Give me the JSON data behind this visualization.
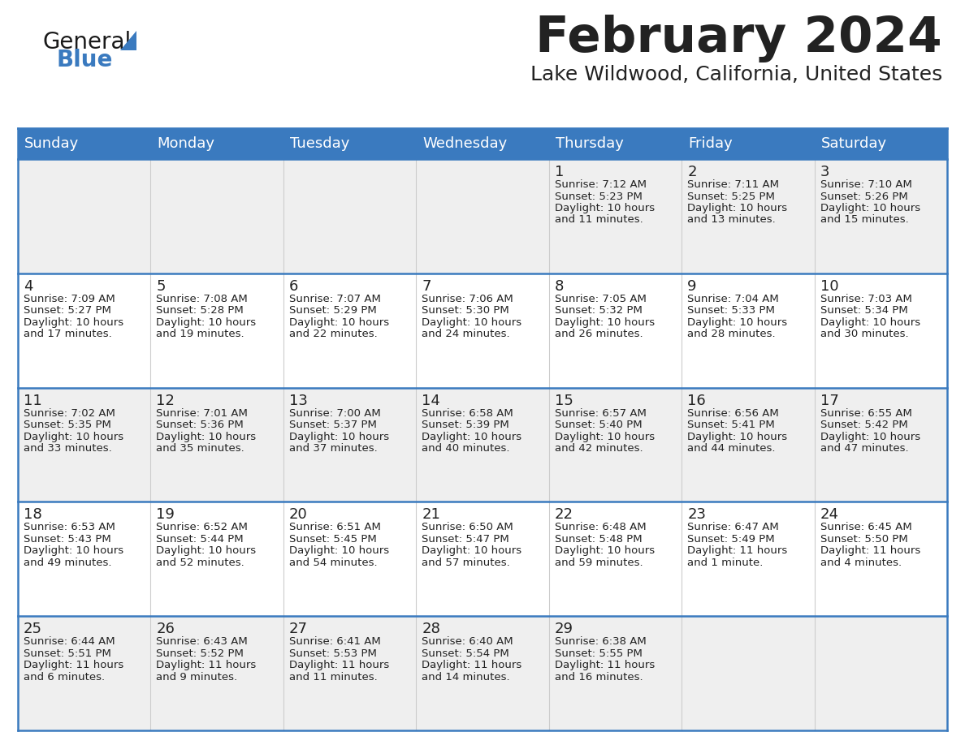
{
  "title": "February 2024",
  "subtitle": "Lake Wildwood, California, United States",
  "header_bg": "#3a7abf",
  "header_text_color": "#ffffff",
  "days_of_week": [
    "Sunday",
    "Monday",
    "Tuesday",
    "Wednesday",
    "Thursday",
    "Friday",
    "Saturday"
  ],
  "row_bg_even": "#efefef",
  "row_bg_odd": "#ffffff",
  "divider_color": "#3a7abf",
  "cell_divider_color": "#cccccc",
  "text_color": "#222222",
  "calendar_data": [
    [
      {
        "day": "",
        "lines": []
      },
      {
        "day": "",
        "lines": []
      },
      {
        "day": "",
        "lines": []
      },
      {
        "day": "",
        "lines": []
      },
      {
        "day": "1",
        "lines": [
          "Sunrise: 7:12 AM",
          "Sunset: 5:23 PM",
          "Daylight: 10 hours",
          "and 11 minutes."
        ]
      },
      {
        "day": "2",
        "lines": [
          "Sunrise: 7:11 AM",
          "Sunset: 5:25 PM",
          "Daylight: 10 hours",
          "and 13 minutes."
        ]
      },
      {
        "day": "3",
        "lines": [
          "Sunrise: 7:10 AM",
          "Sunset: 5:26 PM",
          "Daylight: 10 hours",
          "and 15 minutes."
        ]
      }
    ],
    [
      {
        "day": "4",
        "lines": [
          "Sunrise: 7:09 AM",
          "Sunset: 5:27 PM",
          "Daylight: 10 hours",
          "and 17 minutes."
        ]
      },
      {
        "day": "5",
        "lines": [
          "Sunrise: 7:08 AM",
          "Sunset: 5:28 PM",
          "Daylight: 10 hours",
          "and 19 minutes."
        ]
      },
      {
        "day": "6",
        "lines": [
          "Sunrise: 7:07 AM",
          "Sunset: 5:29 PM",
          "Daylight: 10 hours",
          "and 22 minutes."
        ]
      },
      {
        "day": "7",
        "lines": [
          "Sunrise: 7:06 AM",
          "Sunset: 5:30 PM",
          "Daylight: 10 hours",
          "and 24 minutes."
        ]
      },
      {
        "day": "8",
        "lines": [
          "Sunrise: 7:05 AM",
          "Sunset: 5:32 PM",
          "Daylight: 10 hours",
          "and 26 minutes."
        ]
      },
      {
        "day": "9",
        "lines": [
          "Sunrise: 7:04 AM",
          "Sunset: 5:33 PM",
          "Daylight: 10 hours",
          "and 28 minutes."
        ]
      },
      {
        "day": "10",
        "lines": [
          "Sunrise: 7:03 AM",
          "Sunset: 5:34 PM",
          "Daylight: 10 hours",
          "and 30 minutes."
        ]
      }
    ],
    [
      {
        "day": "11",
        "lines": [
          "Sunrise: 7:02 AM",
          "Sunset: 5:35 PM",
          "Daylight: 10 hours",
          "and 33 minutes."
        ]
      },
      {
        "day": "12",
        "lines": [
          "Sunrise: 7:01 AM",
          "Sunset: 5:36 PM",
          "Daylight: 10 hours",
          "and 35 minutes."
        ]
      },
      {
        "day": "13",
        "lines": [
          "Sunrise: 7:00 AM",
          "Sunset: 5:37 PM",
          "Daylight: 10 hours",
          "and 37 minutes."
        ]
      },
      {
        "day": "14",
        "lines": [
          "Sunrise: 6:58 AM",
          "Sunset: 5:39 PM",
          "Daylight: 10 hours",
          "and 40 minutes."
        ]
      },
      {
        "day": "15",
        "lines": [
          "Sunrise: 6:57 AM",
          "Sunset: 5:40 PM",
          "Daylight: 10 hours",
          "and 42 minutes."
        ]
      },
      {
        "day": "16",
        "lines": [
          "Sunrise: 6:56 AM",
          "Sunset: 5:41 PM",
          "Daylight: 10 hours",
          "and 44 minutes."
        ]
      },
      {
        "day": "17",
        "lines": [
          "Sunrise: 6:55 AM",
          "Sunset: 5:42 PM",
          "Daylight: 10 hours",
          "and 47 minutes."
        ]
      }
    ],
    [
      {
        "day": "18",
        "lines": [
          "Sunrise: 6:53 AM",
          "Sunset: 5:43 PM",
          "Daylight: 10 hours",
          "and 49 minutes."
        ]
      },
      {
        "day": "19",
        "lines": [
          "Sunrise: 6:52 AM",
          "Sunset: 5:44 PM",
          "Daylight: 10 hours",
          "and 52 minutes."
        ]
      },
      {
        "day": "20",
        "lines": [
          "Sunrise: 6:51 AM",
          "Sunset: 5:45 PM",
          "Daylight: 10 hours",
          "and 54 minutes."
        ]
      },
      {
        "day": "21",
        "lines": [
          "Sunrise: 6:50 AM",
          "Sunset: 5:47 PM",
          "Daylight: 10 hours",
          "and 57 minutes."
        ]
      },
      {
        "day": "22",
        "lines": [
          "Sunrise: 6:48 AM",
          "Sunset: 5:48 PM",
          "Daylight: 10 hours",
          "and 59 minutes."
        ]
      },
      {
        "day": "23",
        "lines": [
          "Sunrise: 6:47 AM",
          "Sunset: 5:49 PM",
          "Daylight: 11 hours",
          "and 1 minute."
        ]
      },
      {
        "day": "24",
        "lines": [
          "Sunrise: 6:45 AM",
          "Sunset: 5:50 PM",
          "Daylight: 11 hours",
          "and 4 minutes."
        ]
      }
    ],
    [
      {
        "day": "25",
        "lines": [
          "Sunrise: 6:44 AM",
          "Sunset: 5:51 PM",
          "Daylight: 11 hours",
          "and 6 minutes."
        ]
      },
      {
        "day": "26",
        "lines": [
          "Sunrise: 6:43 AM",
          "Sunset: 5:52 PM",
          "Daylight: 11 hours",
          "and 9 minutes."
        ]
      },
      {
        "day": "27",
        "lines": [
          "Sunrise: 6:41 AM",
          "Sunset: 5:53 PM",
          "Daylight: 11 hours",
          "and 11 minutes."
        ]
      },
      {
        "day": "28",
        "lines": [
          "Sunrise: 6:40 AM",
          "Sunset: 5:54 PM",
          "Daylight: 11 hours",
          "and 14 minutes."
        ]
      },
      {
        "day": "29",
        "lines": [
          "Sunrise: 6:38 AM",
          "Sunset: 5:55 PM",
          "Daylight: 11 hours",
          "and 16 minutes."
        ]
      },
      {
        "day": "",
        "lines": []
      },
      {
        "day": "",
        "lines": []
      }
    ]
  ],
  "logo_color_general": "#1a1a1a",
  "logo_color_blue": "#3a7abf",
  "logo_triangle_color": "#3a7abf",
  "title_fontsize": 44,
  "subtitle_fontsize": 18,
  "header_fontsize": 13,
  "day_num_fontsize": 13,
  "cell_text_fontsize": 9.5
}
